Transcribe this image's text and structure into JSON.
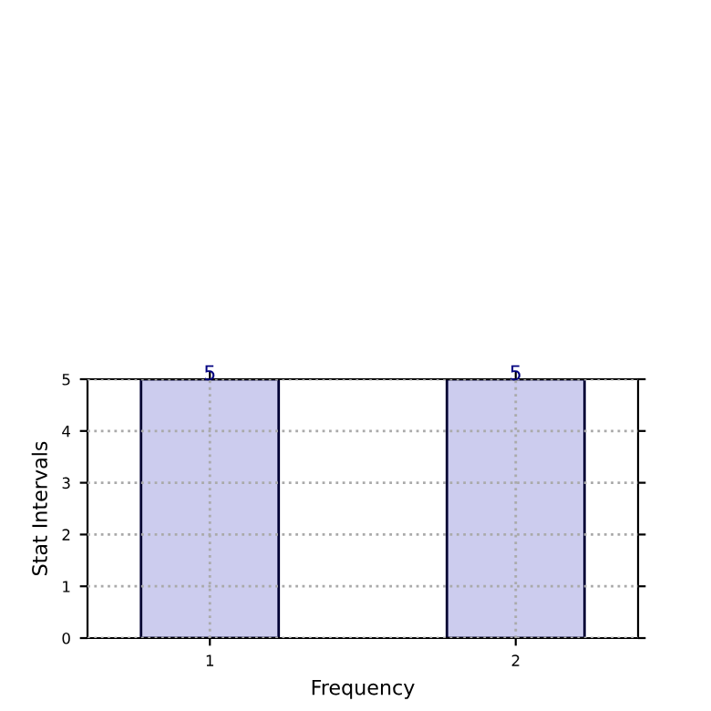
{
  "chart_data": {
    "type": "bar",
    "xlabel": "Frequency",
    "ylabel": "Stat Intervals",
    "categories": [
      "1",
      "2"
    ],
    "series": [
      {
        "color": "#ccccee",
        "values": [
          5,
          5
        ]
      }
    ],
    "ylim": [
      0,
      5
    ],
    "yticks": [
      0,
      1,
      2,
      3,
      4,
      5
    ],
    "grid": true,
    "data_labels": true
  }
}
